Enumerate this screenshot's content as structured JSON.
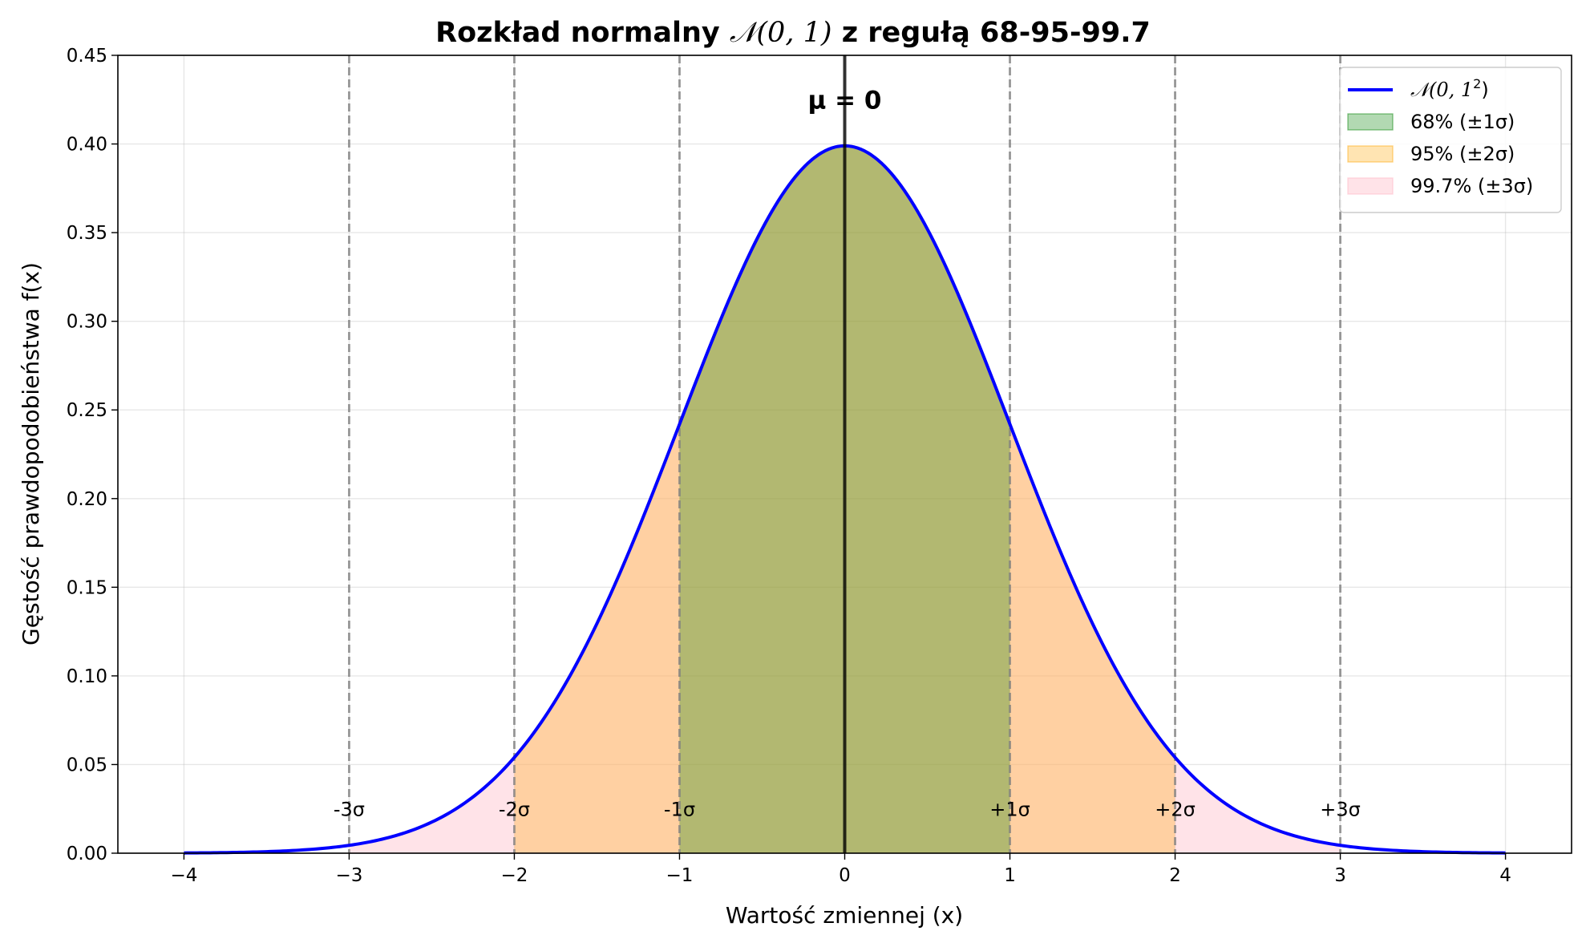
{
  "chart_data": {
    "type": "area",
    "title_prefix": "Rozkład normalny",
    "title_math": "𝒩(0, 1)",
    "title_suffix": "z regułą 68-95-99.7",
    "xlabel": "Wartość zmiennej (x)",
    "ylabel": "Gęstość prawdopodobieństwa f(x)",
    "xlim": [
      -4.4,
      4.4
    ],
    "ylim": [
      0,
      0.45
    ],
    "grid": true,
    "x_ticks": [
      -4,
      -3,
      -2,
      -1,
      0,
      1,
      2,
      3,
      4
    ],
    "x_tick_labels": [
      "−4",
      "−3",
      "−2",
      "−1",
      "0",
      "1",
      "2",
      "3",
      "4"
    ],
    "y_ticks": [
      0,
      0.05,
      0.1,
      0.15,
      0.2,
      0.25,
      0.3,
      0.35,
      0.4,
      0.45
    ],
    "y_tick_labels": [
      "0.00",
      "0.05",
      "0.10",
      "0.15",
      "0.20",
      "0.25",
      "0.30",
      "0.35",
      "0.40",
      "0.45"
    ],
    "curve": {
      "name": "N(0, 1²)",
      "mean": 0,
      "sd": 1,
      "x_range": [
        -4,
        4
      ],
      "color": "#0000ff"
    },
    "bands": [
      {
        "name": "99.7% (±3σ)",
        "from": -3,
        "to": 3,
        "color": "#ffc0cb",
        "opacity": 0.45
      },
      {
        "name": "95% (±2σ)",
        "from": -2,
        "to": 2,
        "color": "#ffa500",
        "opacity": 0.3
      },
      {
        "name": "68% (±1σ)",
        "from": -1,
        "to": 1,
        "color": "#008000",
        "opacity": 0.3
      }
    ],
    "sigma_lines": [
      {
        "x": -3,
        "label": "-3σ"
      },
      {
        "x": -2,
        "label": "-2σ"
      },
      {
        "x": -1,
        "label": "-1σ"
      },
      {
        "x": 1,
        "label": "+1σ"
      },
      {
        "x": 2,
        "label": "+2σ"
      },
      {
        "x": 3,
        "label": "+3σ"
      }
    ],
    "sigma_label_y": 0.025,
    "mean_line": {
      "x": 0,
      "label": "μ = 0",
      "label_y": 0.425,
      "color": "#000000"
    },
    "legend": {
      "position": "top-right",
      "entries": [
        {
          "label_main": "𝒩(0, 1",
          "label_sup": "2",
          "label_end": ")",
          "kind": "line",
          "color": "#0000ff",
          "opacity": 1
        },
        {
          "label": "68% (±1σ)",
          "kind": "patch",
          "color": "#008000",
          "opacity": 0.3
        },
        {
          "label": "95% (±2σ)",
          "kind": "patch",
          "color": "#ffa500",
          "opacity": 0.3
        },
        {
          "label": "99.7% (±3σ)",
          "kind": "patch",
          "color": "#ffc0cb",
          "opacity": 0.45
        }
      ]
    }
  }
}
